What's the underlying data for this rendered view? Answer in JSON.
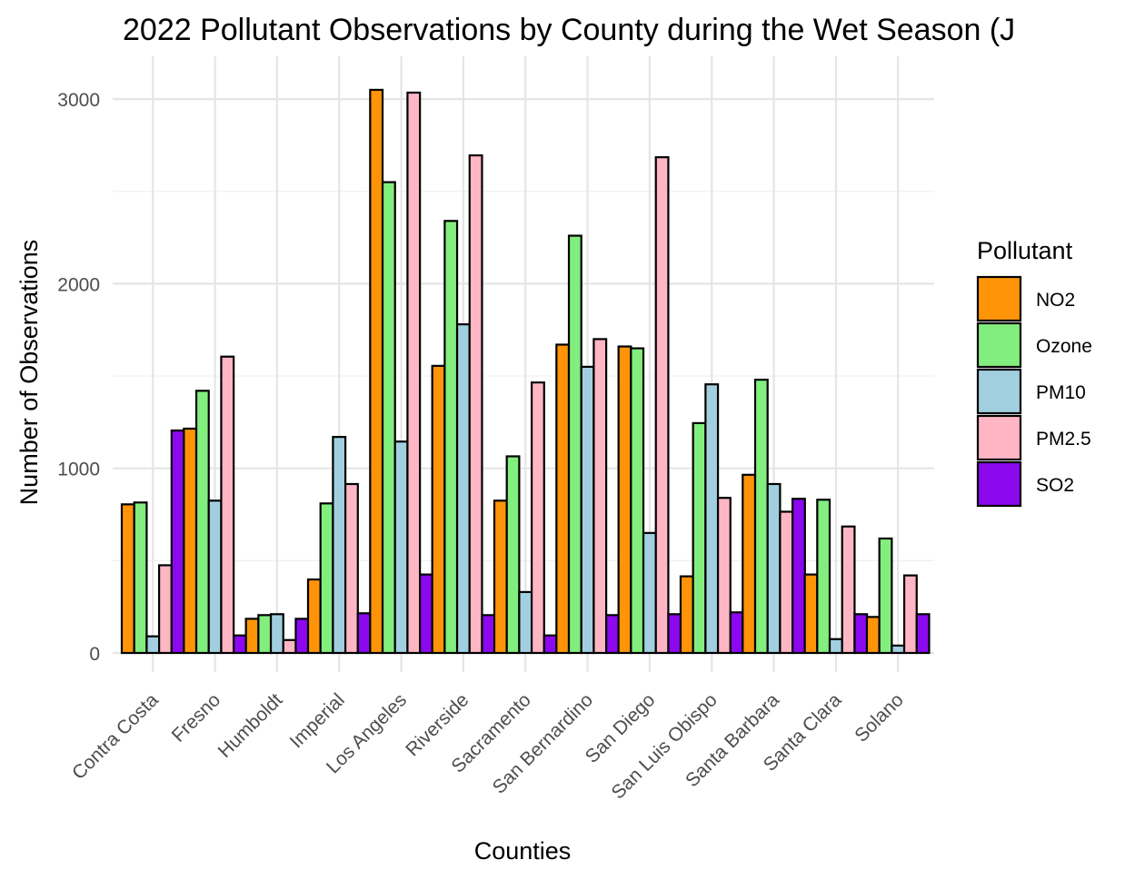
{
  "chart_data": {
    "type": "bar",
    "title": "2022 Pollutant Observations by County during the Wet Season (J",
    "xlabel": "Counties",
    "ylabel": "Number of Observations",
    "ylim": [
      0,
      3200
    ],
    "yticks": [
      0,
      1000,
      2000,
      3000
    ],
    "grid": true,
    "legend": {
      "title": "Pollutant",
      "position": "right"
    },
    "categories": [
      "Contra Costa",
      "Fresno",
      "Humboldt",
      "Imperial",
      "Los Angeles",
      "Riverside",
      "Sacramento",
      "San Bernardino",
      "San Diego",
      "San Luis Obispo",
      "Santa Barbara",
      "Santa Clara",
      "Solano"
    ],
    "series": [
      {
        "name": "NO2",
        "color": "#ff9408",
        "values": [
          805,
          1215,
          185,
          398,
          3050,
          1555,
          825,
          1670,
          1660,
          415,
          965,
          425,
          195
        ]
      },
      {
        "name": "Ozone",
        "color": "#82ee7d",
        "values": [
          815,
          1420,
          205,
          810,
          2550,
          2340,
          1065,
          2260,
          1650,
          1245,
          1480,
          830,
          620
        ]
      },
      {
        "name": "PM10",
        "color": "#a1cfe0",
        "values": [
          90,
          825,
          210,
          1170,
          1145,
          1780,
          330,
          1550,
          650,
          1455,
          915,
          75,
          40
        ]
      },
      {
        "name": "PM2.5",
        "color": "#ffb6c4",
        "values": [
          475,
          1605,
          70,
          915,
          3035,
          2695,
          1465,
          1700,
          2685,
          840,
          765,
          685,
          420
        ]
      },
      {
        "name": "SO2",
        "color": "#8c08ef",
        "values": [
          1205,
          95,
          185,
          215,
          425,
          205,
          95,
          205,
          210,
          220,
          835,
          210,
          210
        ]
      }
    ]
  }
}
